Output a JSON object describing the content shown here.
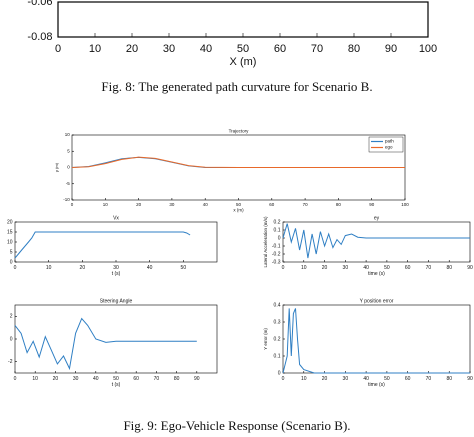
{
  "captions": [
    "Fig. 8: The generated path curvature for Scenario B.",
    "Fig. 9: Ego-Vehicle Response (Scenario B)."
  ],
  "chart_data": [
    {
      "type": "line",
      "xlabel": "X (m)",
      "xlim": [
        0,
        100
      ],
      "xticks": [
        0,
        10,
        20,
        30,
        40,
        50,
        60,
        70,
        80,
        90,
        100
      ],
      "ylim": [
        -0.08,
        -0.06
      ],
      "yticks": [
        -0.08,
        -0.06
      ]
    },
    {
      "type": "line",
      "title": "Trajectory",
      "xlabel": "x (m)",
      "ylabel": "y (m)",
      "legend": "upper right",
      "xlim": [
        0,
        100
      ],
      "xticks": [
        0,
        10,
        20,
        30,
        40,
        50,
        60,
        70,
        80,
        90,
        100
      ],
      "ylim": [
        -10,
        10
      ],
      "yticks": [
        -10,
        -5,
        0,
        5,
        10
      ],
      "series": [
        {
          "name": "path",
          "color": "#2f7fc4",
          "x": [
            0,
            5,
            10,
            15,
            20,
            25,
            30,
            35,
            40,
            50,
            60,
            70,
            80,
            90,
            100
          ],
          "values": [
            0,
            0.3,
            1.4,
            2.7,
            3.1,
            2.7,
            1.6,
            0.5,
            0,
            0,
            0,
            0,
            0,
            0,
            0
          ]
        },
        {
          "name": "ego",
          "color": "#e8692a",
          "x": [
            0,
            5,
            10,
            15,
            20,
            25,
            30,
            35,
            40,
            50,
            60,
            70,
            80,
            90,
            100
          ],
          "values": [
            0,
            0.2,
            1.2,
            2.5,
            3.2,
            2.8,
            1.7,
            0.6,
            0.1,
            0,
            0,
            0,
            0,
            0,
            0
          ]
        }
      ]
    },
    {
      "type": "line",
      "title": "Vx",
      "xlabel": "t (s)",
      "ylabel": "Vx (m/s)",
      "xlim": [
        0,
        60
      ],
      "xticks": [
        0,
        10,
        20,
        30,
        40,
        50
      ],
      "ylim": [
        0,
        20
      ],
      "yticks": [
        0,
        5,
        10,
        15,
        20
      ],
      "series": [
        {
          "color": "#2f7fc4",
          "x": [
            0,
            1,
            2,
            3,
            4,
            5,
            6,
            10,
            20,
            30,
            40,
            50,
            51,
            52
          ],
          "values": [
            2,
            4,
            6,
            8,
            10,
            12,
            15,
            15,
            15,
            15,
            15,
            15,
            14.5,
            13.5
          ]
        }
      ]
    },
    {
      "type": "line",
      "title": "ey",
      "xlabel": "time (s)",
      "ylabel": "Lateral Acceleration (m/s)",
      "xlim": [
        0,
        90
      ],
      "xticks": [
        0,
        10,
        20,
        30,
        40,
        50,
        60,
        70,
        80,
        90
      ],
      "ylim": [
        -0.3,
        0.2
      ],
      "yticks": [
        -0.3,
        -0.2,
        -0.1,
        0,
        0.1,
        0.2
      ],
      "series": [
        {
          "color": "#2f7fc4",
          "x": [
            0,
            2,
            4,
            6,
            8,
            10,
            12,
            14,
            16,
            18,
            20,
            22,
            24,
            26,
            28,
            30,
            33,
            36,
            40,
            50,
            60,
            70,
            80,
            90
          ],
          "values": [
            0,
            0.18,
            -0.05,
            0.12,
            -0.15,
            0.1,
            -0.25,
            0.05,
            -0.2,
            0.08,
            -0.1,
            0.05,
            -0.12,
            -0.02,
            -0.08,
            0.03,
            0.05,
            0.01,
            0,
            0,
            0,
            0,
            0,
            0
          ]
        }
      ]
    },
    {
      "type": "line",
      "title": "Steering Angle",
      "xlabel": "t (s)",
      "ylabel": "Steering Angle (deg)",
      "xlim": [
        0,
        100
      ],
      "xticks": [
        0,
        10,
        20,
        30,
        40,
        50,
        60,
        70,
        80,
        90
      ],
      "ylim": [
        -3,
        3
      ],
      "yticks": [
        -2,
        0,
        2
      ],
      "series": [
        {
          "color": "#2f7fc4",
          "x": [
            0,
            3,
            6,
            9,
            12,
            15,
            18,
            21,
            24,
            27,
            30,
            33,
            36,
            40,
            45,
            50,
            60,
            70,
            80,
            90
          ],
          "values": [
            1.2,
            0.5,
            -1.2,
            -0.2,
            -1.6,
            0.2,
            -1,
            -2.2,
            -1.5,
            -2.6,
            0.5,
            1.8,
            1.2,
            0,
            -0.3,
            -0.2,
            -0.2,
            -0.2,
            -0.2,
            -0.2
          ]
        }
      ]
    },
    {
      "type": "line",
      "title": "Y position error",
      "xlabel": "time (s)",
      "ylabel": "Y error (m)",
      "xlim": [
        0,
        90
      ],
      "xticks": [
        0,
        10,
        20,
        30,
        40,
        50,
        60,
        70,
        80,
        90
      ],
      "ylim": [
        0,
        0.4
      ],
      "yticks": [
        0,
        0.1,
        0.2,
        0.3,
        0.4
      ],
      "series": [
        {
          "color": "#2f7fc4",
          "x": [
            0,
            2,
            3,
            4,
            5,
            6,
            7,
            8,
            10,
            15,
            20,
            90
          ],
          "values": [
            0,
            0.1,
            0.38,
            0.1,
            0.35,
            0.38,
            0.2,
            0.05,
            0.02,
            0,
            0,
            0
          ]
        }
      ]
    }
  ]
}
